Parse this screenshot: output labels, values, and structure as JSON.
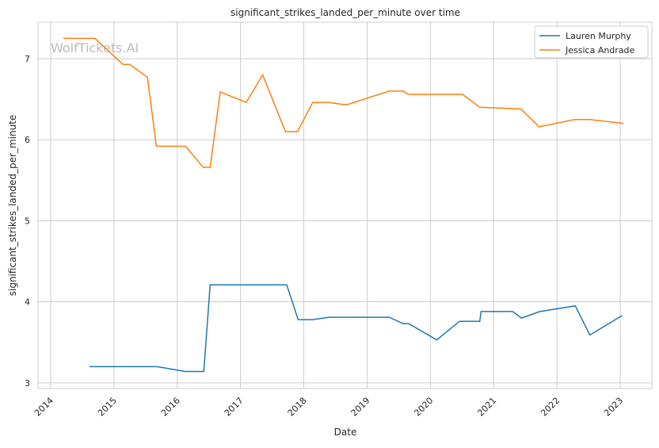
{
  "chart_data": {
    "type": "line",
    "title": "significant_strikes_landed_per_minute over time",
    "xlabel": "Date",
    "ylabel": "significant_strikes_landed_per_minute",
    "xlim": [
      2013.8,
      2023.5
    ],
    "ylim": [
      2.93,
      7.45
    ],
    "x_ticks": [
      "2014",
      "2015",
      "2016",
      "2017",
      "2018",
      "2019",
      "2020",
      "2021",
      "2022",
      "2023"
    ],
    "y_ticks": [
      "3",
      "4",
      "5",
      "6",
      "7"
    ],
    "grid": true,
    "legend_position": "top-right",
    "watermark": "WolfTickets.AI",
    "series": [
      {
        "name": "Lauren Murphy",
        "color": "#1f77b4",
        "x": [
          2014.61,
          2015.68,
          2016.13,
          2016.42,
          2016.52,
          2017.73,
          2017.91,
          2018.14,
          2018.4,
          2019.35,
          2019.57,
          2019.66,
          2020.1,
          2020.46,
          2020.78,
          2020.8,
          2021.3,
          2021.44,
          2021.73,
          2022.29,
          2022.52,
          2023.03
        ],
        "y": [
          3.2,
          3.2,
          3.14,
          3.14,
          4.21,
          4.21,
          3.78,
          3.78,
          3.81,
          3.81,
          3.73,
          3.73,
          3.53,
          3.76,
          3.76,
          3.88,
          3.88,
          3.8,
          3.88,
          3.95,
          3.59,
          3.83
        ]
      },
      {
        "name": "Jessica Andrade",
        "color": "#ff7f0e",
        "x": [
          2014.2,
          2014.7,
          2015.14,
          2015.25,
          2015.53,
          2015.67,
          2016.13,
          2016.41,
          2016.52,
          2016.68,
          2017.09,
          2017.35,
          2017.71,
          2017.9,
          2018.14,
          2018.4,
          2018.67,
          2019.35,
          2019.57,
          2019.65,
          2020.51,
          2020.78,
          2021.43,
          2021.72,
          2022.28,
          2022.52,
          2023.05
        ],
        "y": [
          7.25,
          7.25,
          6.93,
          6.93,
          6.77,
          5.92,
          5.92,
          5.66,
          5.66,
          6.59,
          6.46,
          6.8,
          6.1,
          6.1,
          6.46,
          6.46,
          6.43,
          6.6,
          6.6,
          6.56,
          6.56,
          6.4,
          6.38,
          6.16,
          6.25,
          6.25,
          6.2
        ]
      }
    ]
  }
}
